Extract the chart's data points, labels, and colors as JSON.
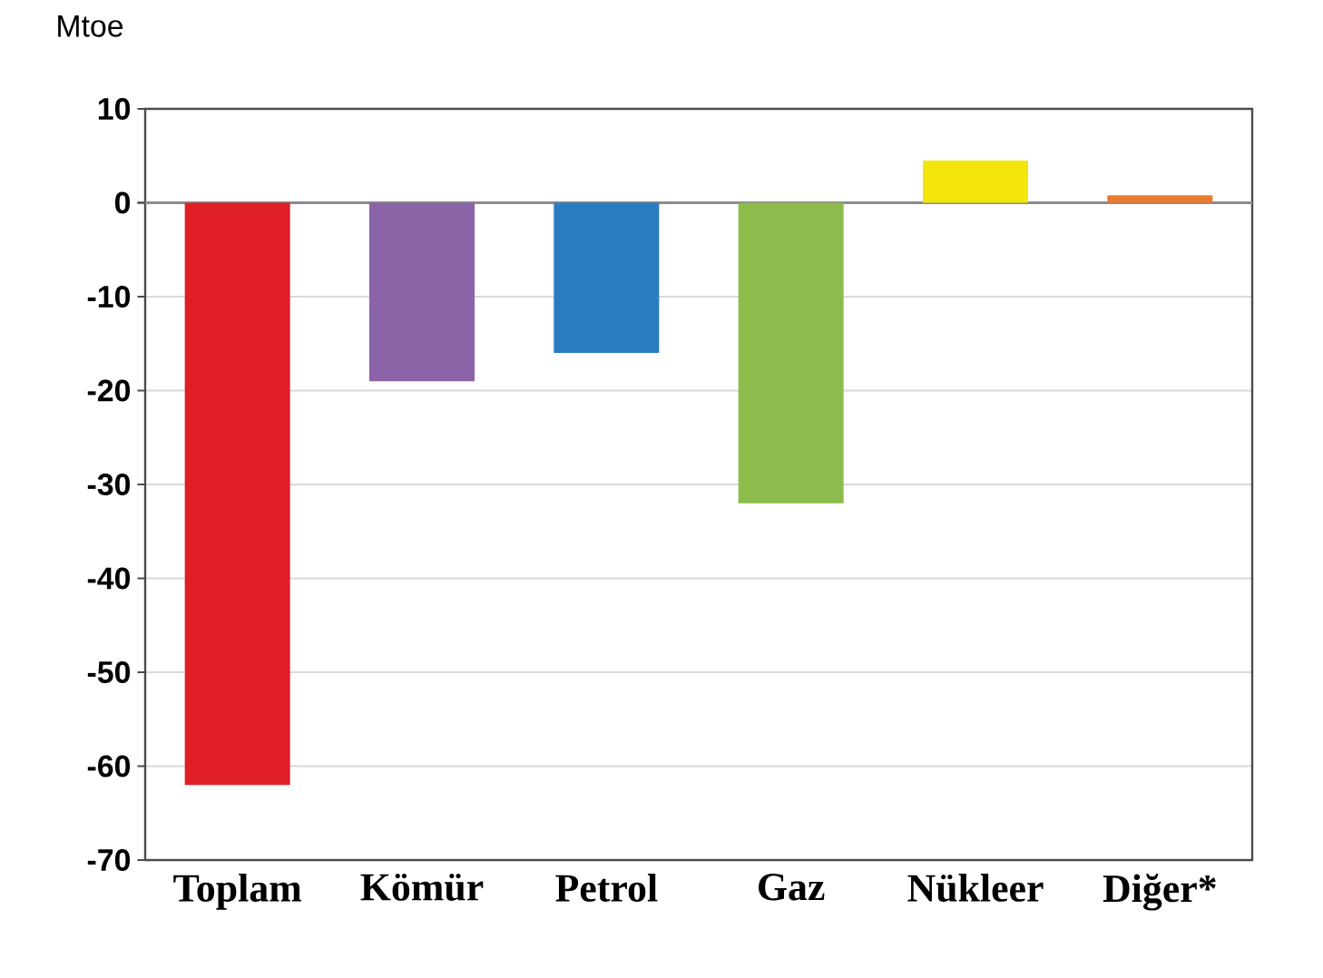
{
  "chart_data": {
    "type": "bar",
    "ylabel": "Mtoe",
    "categories": [
      "Toplam",
      "Kömür",
      "Petrol",
      "Gaz",
      "Nükleer",
      "Diğer*"
    ],
    "values": [
      -62,
      -19,
      -16,
      -32,
      4.5,
      0.8
    ],
    "colors": [
      "#e01e26",
      "#8b64a8",
      "#2a7cc1",
      "#8dbb4c",
      "#f4e60a",
      "#ec7b2e"
    ],
    "ylim": [
      -70,
      10
    ],
    "yticks": [
      -70,
      -60,
      -50,
      -40,
      -30,
      -20,
      -10,
      0,
      10
    ],
    "grid": "y"
  }
}
